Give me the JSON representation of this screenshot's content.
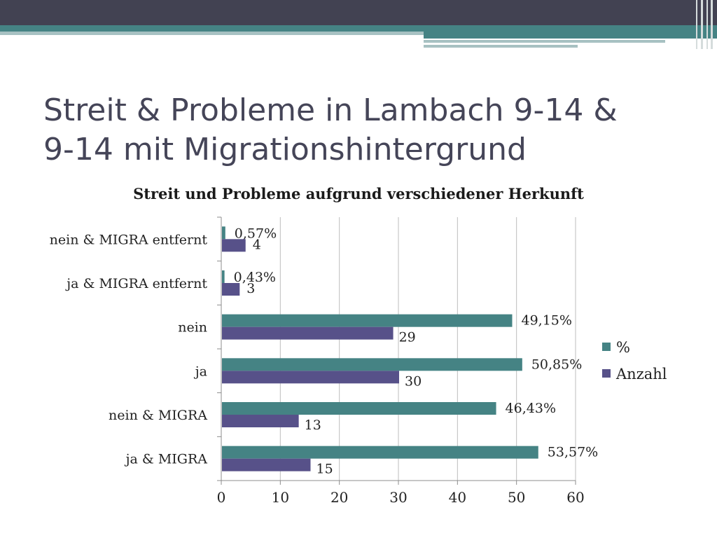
{
  "slide": {
    "title_line1": "Streit & Probleme in Lambach 9-14 &",
    "title_line2": "9-14 mit Migrationshintergrund"
  },
  "colors": {
    "teal": "#458384",
    "purple": "#575189",
    "banner_dark": "#424252",
    "banner_teal": "#458384",
    "banner_light": "#a7c1c2"
  },
  "chart_data": {
    "type": "bar",
    "orientation": "horizontal",
    "title": "Streit und Probleme aufgrund  verschiedener Herkunft",
    "categories": [
      "nein & MIGRA entfernt",
      "ja & MIGRA entfernt",
      "nein",
      "ja",
      "nein & MIGRA",
      "ja & MIGRA"
    ],
    "series": [
      {
        "name": "%",
        "color": "#458384",
        "values": [
          0.57,
          0.43,
          49.15,
          50.85,
          46.43,
          53.57
        ],
        "labels": [
          "0,57%",
          "0,43%",
          "49,15%",
          "50,85%",
          "46,43%",
          "53,57%"
        ]
      },
      {
        "name": "Anzahl",
        "color": "#575189",
        "values": [
          4,
          3,
          29,
          30,
          13,
          15
        ],
        "labels": [
          "4",
          "3",
          "29",
          "30",
          "13",
          "15"
        ]
      }
    ],
    "xlim": [
      0,
      60
    ],
    "xticks": [
      "0",
      "10",
      "20",
      "30",
      "40",
      "50",
      "60"
    ],
    "grid": true,
    "legend_position": "right"
  }
}
